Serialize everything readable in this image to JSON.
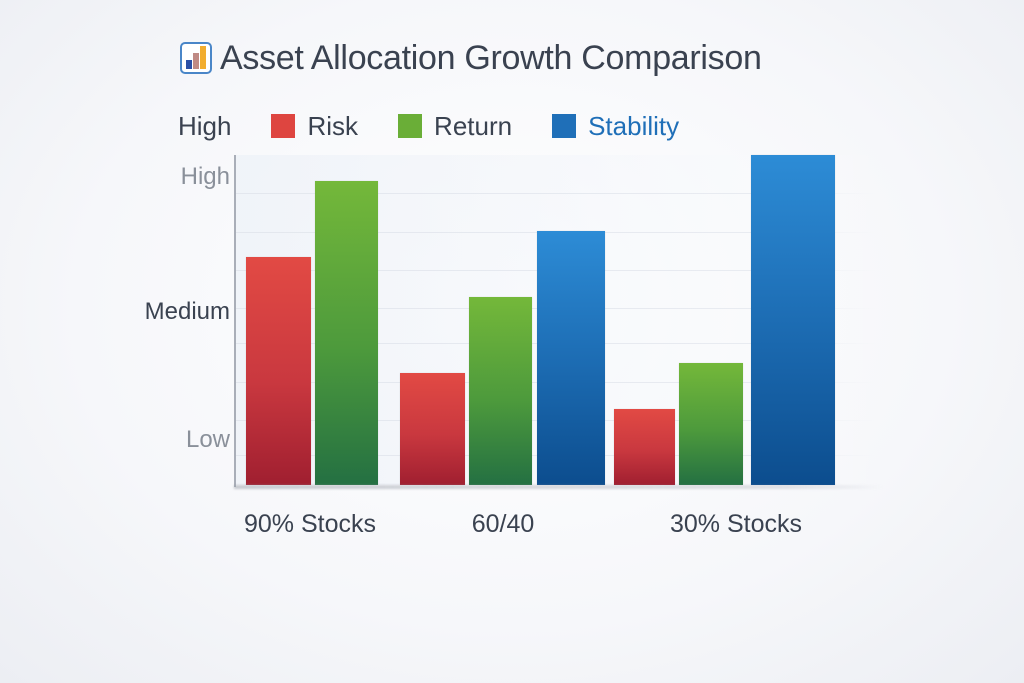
{
  "title": "Asset Allocation Growth Comparison",
  "title_icon": "bar-chart-icon",
  "legend": {
    "prefix": "High",
    "items": [
      {
        "label": "Risk",
        "color": "#de4540"
      },
      {
        "label": "Return",
        "color": "#6aae37"
      },
      {
        "label": "Stability",
        "color": "#1f6fb8"
      }
    ]
  },
  "y_axis": {
    "labels": [
      "High",
      "Medium",
      "Low"
    ]
  },
  "x_axis": {
    "labels": [
      "90% Stocks",
      "60/40",
      "30% Stocks"
    ]
  },
  "chart_data": {
    "type": "bar",
    "title": "Asset Allocation Growth Comparison",
    "categories": [
      "90% Stocks",
      "60/40",
      "30% Stocks"
    ],
    "series": [
      {
        "name": "Risk",
        "color": "#de4540",
        "values": [
          69,
          34,
          23
        ]
      },
      {
        "name": "Return",
        "color": "#6aae37",
        "values": [
          92,
          57,
          37
        ]
      },
      {
        "name": "Stability",
        "color": "#1f6fb8",
        "values": [
          null,
          77,
          100
        ]
      }
    ],
    "xlabel": "",
    "ylabel": "",
    "y_tick_labels": [
      "Low",
      "Medium",
      "High"
    ],
    "ylim": [
      0,
      100
    ],
    "grid": true,
    "legend_position": "top"
  }
}
